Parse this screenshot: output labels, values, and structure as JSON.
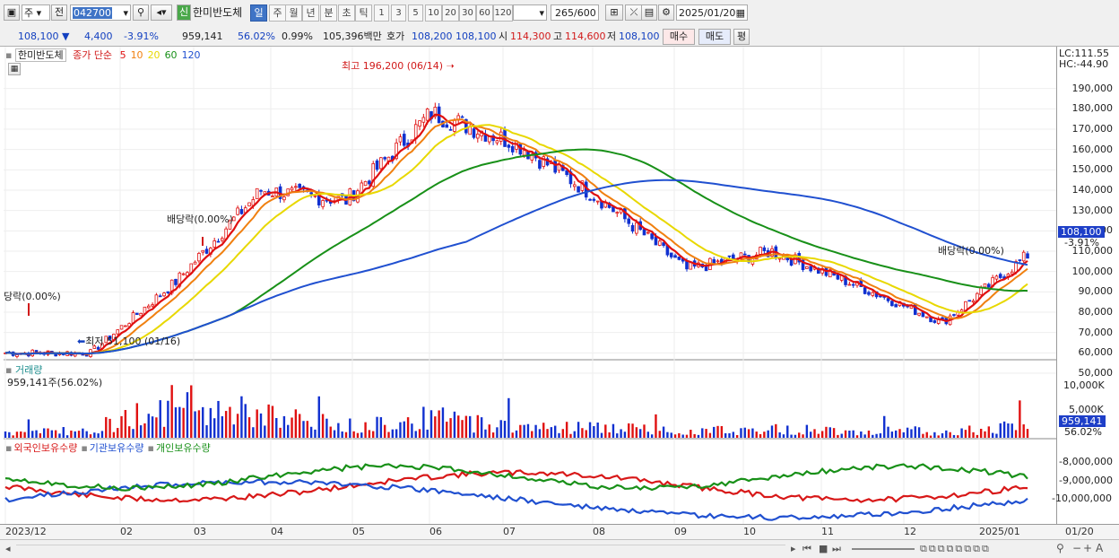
{
  "toolbar": {
    "market": "주",
    "prev_label": "전",
    "code": "042700",
    "badge": "신",
    "name": "한미반도체",
    "periods": [
      "일",
      "주",
      "월",
      "년",
      "분",
      "초",
      "틱"
    ],
    "selected_period": "일",
    "intervals": [
      "1",
      "3",
      "5",
      "10",
      "20",
      "30",
      "60",
      "120"
    ],
    "count": "265",
    "count_total": "/600",
    "date": "2025/01/20"
  },
  "quote": {
    "price": "108,100",
    "change": "4,400",
    "change_pct": "-3.91%",
    "volume": "959,141",
    "volume_ratio": "56.02%",
    "turnover_pct": "0.99%",
    "amount": "105,396백만",
    "hoga_label": "호가",
    "ask": "108,200",
    "bid": "108,100",
    "open_label": "시",
    "open": "114,300",
    "high_label": "고",
    "high": "114,600",
    "low_label": "저",
    "low": "108,100",
    "buy_button": "매수",
    "sell_button": "매도",
    "eval_button": "평"
  },
  "price_panel": {
    "title": "한미반도체",
    "ma_label": "종가 단순",
    "ma_periods": [
      "5",
      "10",
      "20",
      "60",
      "120"
    ],
    "ma_colors": [
      "#e01010",
      "#f08010",
      "#e8d800",
      "#189018",
      "#2050d0"
    ],
    "lc": "LC:111.55",
    "hc": "HC:-44.90",
    "y_labels": [
      "190,000",
      "180,000",
      "170,000",
      "160,000",
      "150,000",
      "140,000",
      "130,000",
      "120,000",
      "110,000",
      "100,000",
      "90,000",
      "80,000",
      "70,000",
      "60,000",
      "50,000"
    ],
    "current_tag": "108,100",
    "current_pct": "-3.91%",
    "annotations": {
      "high": "최고 196,200 (06/14)",
      "low": "최저 51,100 (01/16)",
      "div1": "배당락(0.00%)",
      "div2": "배당락(0.00%)",
      "div3": "당락(0.00%)"
    }
  },
  "volume_panel": {
    "title": "거래량",
    "info": "959,141주(56.02%)",
    "y_labels": [
      "10,000K",
      "5,000K"
    ],
    "current_tag": "959,141",
    "current_pct": "56.02%"
  },
  "holdings_panel": {
    "legend": [
      "외국인보유수량",
      "기관보유수량",
      "개인보유수량"
    ],
    "colors": [
      "#d81818",
      "#2050d0",
      "#189018"
    ],
    "y_labels": [
      "-8,000,000",
      "-9,000,000",
      "-10,000,000"
    ]
  },
  "x_axis": {
    "labels": [
      "2023/12",
      "02",
      "03",
      "04",
      "05",
      "06",
      "07",
      "08",
      "09",
      "10",
      "11",
      "12",
      "2025/01"
    ],
    "right_label": "01/20"
  },
  "chart_data": [
    {
      "type": "line",
      "title": "한미반도체",
      "ylim": [
        50000,
        200000
      ],
      "x": [
        "2023/12",
        "02",
        "03",
        "04",
        "05",
        "06",
        "07",
        "08",
        "09",
        "10",
        "11",
        "12",
        "2025/01"
      ],
      "series": [
        {
          "name": "5",
          "values": [
            60000,
            60000,
            95000,
            140000,
            135000,
            178000,
            163000,
            135000,
            101000,
            110000,
            93000,
            75000,
            108000
          ]
        },
        {
          "name": "120",
          "values": [
            56000,
            57000,
            62000,
            72000,
            85000,
            108000,
            140000,
            157000,
            151000,
            135000,
            115000,
            100000,
            96000
          ]
        }
      ]
    },
    {
      "type": "bar",
      "title": "거래량",
      "categories": [
        "2023/12",
        "02",
        "03",
        "04",
        "05",
        "06",
        "07",
        "08",
        "09",
        "10",
        "11",
        "12",
        "2025/01"
      ],
      "values": [
        800,
        1500,
        6000,
        4000,
        2000,
        3500,
        2000,
        1800,
        1200,
        1500,
        1300,
        1100,
        2000
      ]
    }
  ]
}
